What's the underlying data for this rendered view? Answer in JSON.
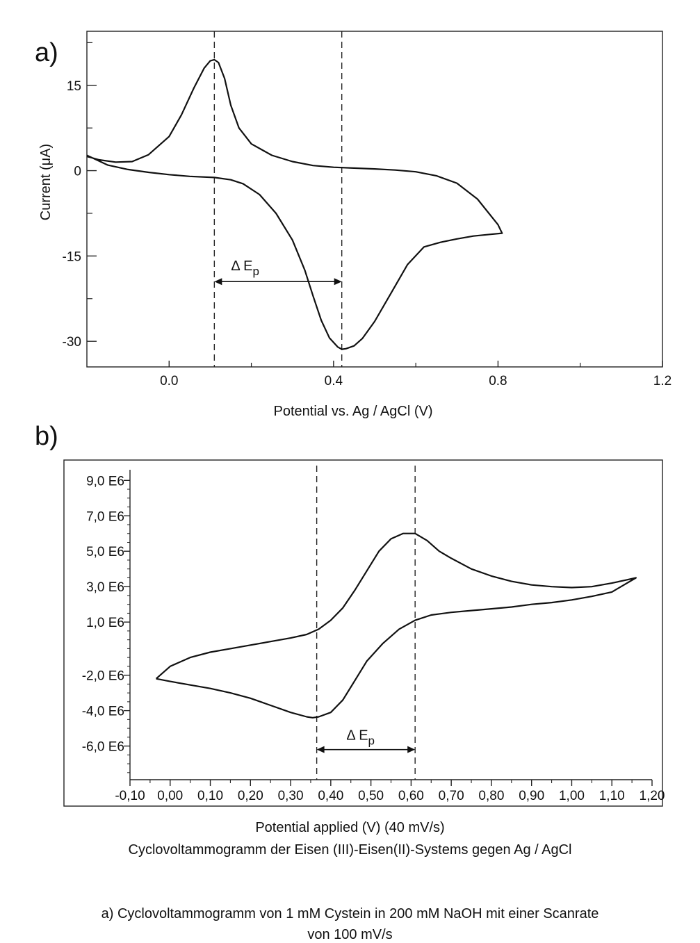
{
  "chart_data": [
    {
      "panel_label": "a)",
      "type": "line",
      "xlabel": "Potential vs. Ag / AgCl (V)",
      "ylabel": "Current  (μA)",
      "xlim": [
        -0.2,
        1.2
      ],
      "ylim": [
        -34.5,
        24.5
      ],
      "xticks": [
        0.0,
        0.4,
        0.8,
        1.2
      ],
      "xtick_labels": [
        "0.0",
        "0.4",
        "0.8",
        "1.2"
      ],
      "yticks": [
        15,
        0,
        -15,
        -30
      ],
      "ytick_labels": [
        "15",
        "0",
        "-15",
        "-30"
      ],
      "grid": false,
      "annotation": {
        "label": "Δ E",
        "subscript": "p",
        "from_x": 0.11,
        "to_x": 0.42,
        "y": -19.5
      },
      "vlines": [
        0.11,
        0.42
      ],
      "series": [
        {
          "x": [
            -0.2,
            -0.17,
            -0.13,
            -0.09,
            -0.05,
            0.0,
            0.03,
            0.06,
            0.085,
            0.1,
            0.11,
            0.12,
            0.135,
            0.15,
            0.17,
            0.2,
            0.25,
            0.3,
            0.35,
            0.4,
            0.45,
            0.5,
            0.55,
            0.6,
            0.65,
            0.7,
            0.75,
            0.8,
            0.81,
            0.78,
            0.74,
            0.7,
            0.66,
            0.62,
            0.58,
            0.54,
            0.5,
            0.47,
            0.45,
            0.43,
            0.42,
            0.41,
            0.39,
            0.37,
            0.35,
            0.33,
            0.3,
            0.26,
            0.22,
            0.18,
            0.15,
            0.11,
            0.05,
            0.0,
            -0.05,
            -0.1,
            -0.15,
            -0.2
          ],
          "y": [
            2.5,
            1.9,
            1.5,
            1.6,
            2.8,
            6.0,
            9.8,
            14.5,
            18.0,
            19.3,
            19.5,
            19.0,
            16.2,
            11.5,
            7.5,
            4.7,
            2.7,
            1.6,
            0.9,
            0.6,
            0.45,
            0.3,
            0.1,
            -0.2,
            -0.9,
            -2.2,
            -5.0,
            -9.5,
            -11.0,
            -11.2,
            -11.5,
            -12.0,
            -12.6,
            -13.4,
            -16.5,
            -21.5,
            -26.5,
            -29.5,
            -30.8,
            -31.3,
            -31.4,
            -31.0,
            -29.4,
            -26.3,
            -22.0,
            -17.5,
            -12.2,
            -7.5,
            -4.2,
            -2.3,
            -1.6,
            -1.2,
            -1.0,
            -0.7,
            -0.3,
            0.2,
            1.0,
            2.7
          ]
        }
      ]
    },
    {
      "panel_label": "b)",
      "type": "line",
      "xlabel": "Potential applied (V) (40 mV/s)",
      "subtitle": "Cyclovoltammogramm der Eisen (III)-Eisen(II)-Systems gegen Ag / AgCl",
      "xlim": [
        -0.1,
        1.2
      ],
      "ylim": [
        -7.9,
        9.6
      ],
      "xticks": [
        -0.1,
        0.0,
        0.1,
        0.2,
        0.3,
        0.4,
        0.5,
        0.6,
        0.7,
        0.8,
        0.9,
        1.0,
        1.1,
        1.2
      ],
      "xtick_labels": [
        "-0,10",
        "0,00",
        "0,10",
        "0,20",
        "0,30",
        "0,40",
        "0,50",
        "0,60",
        "0,70",
        "0,80",
        "0,90",
        "1,00",
        "1,10",
        "1,20"
      ],
      "yticks": [
        9,
        7,
        5,
        3,
        1,
        -2,
        -4,
        -6
      ],
      "ytick_labels": [
        "9,0 E6",
        "7,0 E6",
        "5,0 E6",
        "3,0 E6",
        "1,0 E6",
        "-2,0 E6",
        "-4,0 E6",
        "-6,0 E6"
      ],
      "grid": false,
      "annotation": {
        "label": "Δ E",
        "subscript": "p",
        "from_x": 0.365,
        "to_x": 0.61,
        "y": -6.2
      },
      "vlines": [
        0.365,
        0.61
      ],
      "series": [
        {
          "x": [
            -0.035,
            0.0,
            0.05,
            0.1,
            0.15,
            0.2,
            0.25,
            0.3,
            0.34,
            0.37,
            0.4,
            0.43,
            0.46,
            0.49,
            0.52,
            0.55,
            0.58,
            0.61,
            0.64,
            0.67,
            0.7,
            0.75,
            0.8,
            0.85,
            0.9,
            0.95,
            1.0,
            1.05,
            1.1,
            1.13,
            1.16,
            1.13,
            1.1,
            1.05,
            1.0,
            0.95,
            0.9,
            0.85,
            0.8,
            0.75,
            0.7,
            0.65,
            0.61,
            0.57,
            0.53,
            0.49,
            0.46,
            0.43,
            0.4,
            0.37,
            0.355,
            0.34,
            0.3,
            0.25,
            0.2,
            0.15,
            0.1,
            0.05,
            0.0,
            -0.035
          ],
          "y": [
            -2.2,
            -1.5,
            -1.0,
            -0.7,
            -0.5,
            -0.3,
            -0.1,
            0.1,
            0.3,
            0.6,
            1.1,
            1.8,
            2.8,
            3.9,
            5.0,
            5.7,
            6.0,
            6.0,
            5.6,
            5.0,
            4.6,
            4.0,
            3.6,
            3.3,
            3.1,
            3.0,
            2.95,
            3.0,
            3.2,
            3.35,
            3.5,
            3.1,
            2.7,
            2.45,
            2.25,
            2.1,
            2.0,
            1.85,
            1.75,
            1.65,
            1.55,
            1.4,
            1.1,
            0.6,
            -0.2,
            -1.2,
            -2.3,
            -3.4,
            -4.1,
            -4.35,
            -4.4,
            -4.35,
            -4.1,
            -3.7,
            -3.3,
            -3.0,
            -2.75,
            -2.55,
            -2.35,
            -2.2
          ]
        }
      ]
    }
  ],
  "footer_caption": {
    "line1": "a) Cyclovoltammogramm von 1 mM Cystein in 200 mM NaOH mit einer Scanrate",
    "line2": "von 100 mV/s"
  }
}
